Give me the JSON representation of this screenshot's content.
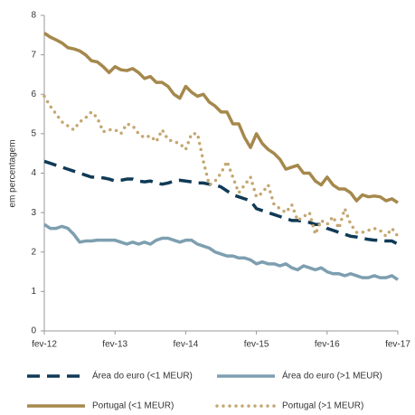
{
  "chart_data": {
    "type": "line",
    "y_label": "em percentagem",
    "categories": [
      "fev-12",
      null,
      null,
      null,
      null,
      null,
      null,
      null,
      null,
      null,
      null,
      null,
      "fev-13",
      null,
      null,
      null,
      null,
      null,
      null,
      null,
      null,
      null,
      null,
      null,
      "fev-14",
      null,
      null,
      null,
      null,
      null,
      null,
      null,
      null,
      null,
      null,
      null,
      "fev-15",
      null,
      null,
      null,
      null,
      null,
      null,
      null,
      null,
      null,
      null,
      null,
      "fev-16",
      null,
      null,
      null,
      null,
      null,
      null,
      null,
      null,
      null,
      null,
      null,
      "fev-17"
    ],
    "ylim": [
      0,
      8
    ],
    "yticks": [
      0,
      1,
      2,
      3,
      4,
      5,
      6,
      7,
      8
    ],
    "series": [
      {
        "name": "Área do euro (<1 MEUR)",
        "color": "#0f3a56",
        "style": "dashed",
        "values": [
          4.3,
          4.25,
          4.2,
          4.15,
          4.1,
          4.05,
          4.0,
          3.95,
          3.9,
          3.9,
          3.88,
          3.85,
          3.8,
          3.82,
          3.85,
          3.85,
          3.8,
          3.78,
          3.8,
          3.75,
          3.72,
          3.75,
          3.8,
          3.82,
          3.8,
          3.78,
          3.75,
          3.75,
          3.72,
          3.7,
          3.65,
          3.55,
          3.45,
          3.4,
          3.35,
          3.3,
          3.1,
          3.05,
          3.0,
          2.95,
          2.9,
          2.85,
          2.8,
          2.8,
          2.78,
          2.75,
          2.7,
          2.7,
          2.6,
          2.55,
          2.5,
          2.45,
          2.4,
          2.38,
          2.35,
          2.32,
          2.3,
          2.3,
          2.28,
          2.28,
          2.2
        ]
      },
      {
        "name": "Área do euro (>1 MEUR)",
        "color": "#7d9fb0",
        "style": "solid",
        "values": [
          2.7,
          2.6,
          2.6,
          2.65,
          2.6,
          2.45,
          2.25,
          2.28,
          2.28,
          2.3,
          2.3,
          2.3,
          2.3,
          2.25,
          2.2,
          2.25,
          2.2,
          2.25,
          2.2,
          2.3,
          2.35,
          2.35,
          2.3,
          2.25,
          2.3,
          2.3,
          2.2,
          2.15,
          2.1,
          2.0,
          1.95,
          1.9,
          1.9,
          1.85,
          1.85,
          1.8,
          1.7,
          1.75,
          1.7,
          1.7,
          1.65,
          1.7,
          1.6,
          1.55,
          1.65,
          1.6,
          1.55,
          1.6,
          1.5,
          1.45,
          1.45,
          1.4,
          1.45,
          1.4,
          1.35,
          1.35,
          1.4,
          1.35,
          1.35,
          1.4,
          1.3
        ]
      },
      {
        "name": "Portugal (<1 MEUR)",
        "color": "#a5884c",
        "style": "solid",
        "values": [
          7.55,
          7.45,
          7.38,
          7.3,
          7.18,
          7.15,
          7.1,
          7.0,
          6.85,
          6.82,
          6.7,
          6.55,
          6.7,
          6.62,
          6.6,
          6.65,
          6.55,
          6.4,
          6.45,
          6.3,
          6.3,
          6.2,
          6.0,
          5.9,
          6.2,
          6.05,
          5.95,
          6.0,
          5.8,
          5.7,
          5.55,
          5.55,
          5.25,
          5.25,
          4.9,
          4.65,
          5.0,
          4.75,
          4.6,
          4.5,
          4.35,
          4.1,
          4.15,
          4.2,
          4.0,
          4.0,
          3.8,
          3.7,
          3.9,
          3.7,
          3.6,
          3.6,
          3.5,
          3.3,
          3.45,
          3.4,
          3.42,
          3.4,
          3.3,
          3.35,
          3.25
        ]
      },
      {
        "name": "Portugal (>1 MEUR)",
        "color": "#c4a771",
        "style": "dotted",
        "values": [
          5.95,
          5.7,
          5.5,
          5.3,
          5.2,
          5.1,
          5.3,
          5.4,
          5.55,
          5.4,
          5.05,
          5.1,
          5.1,
          5.0,
          5.25,
          5.2,
          5.0,
          4.9,
          4.95,
          4.8,
          5.1,
          4.85,
          4.8,
          4.75,
          4.6,
          5.0,
          5.0,
          4.3,
          3.7,
          3.8,
          4.0,
          4.3,
          3.9,
          3.5,
          3.7,
          3.9,
          3.4,
          3.5,
          3.7,
          3.2,
          3.1,
          3.0,
          3.2,
          2.8,
          2.9,
          3.0,
          2.45,
          2.8,
          2.7,
          2.9,
          2.6,
          3.1,
          2.7,
          2.5,
          2.5,
          2.55,
          2.6,
          2.55,
          2.4,
          2.6,
          2.4
        ]
      }
    ]
  }
}
